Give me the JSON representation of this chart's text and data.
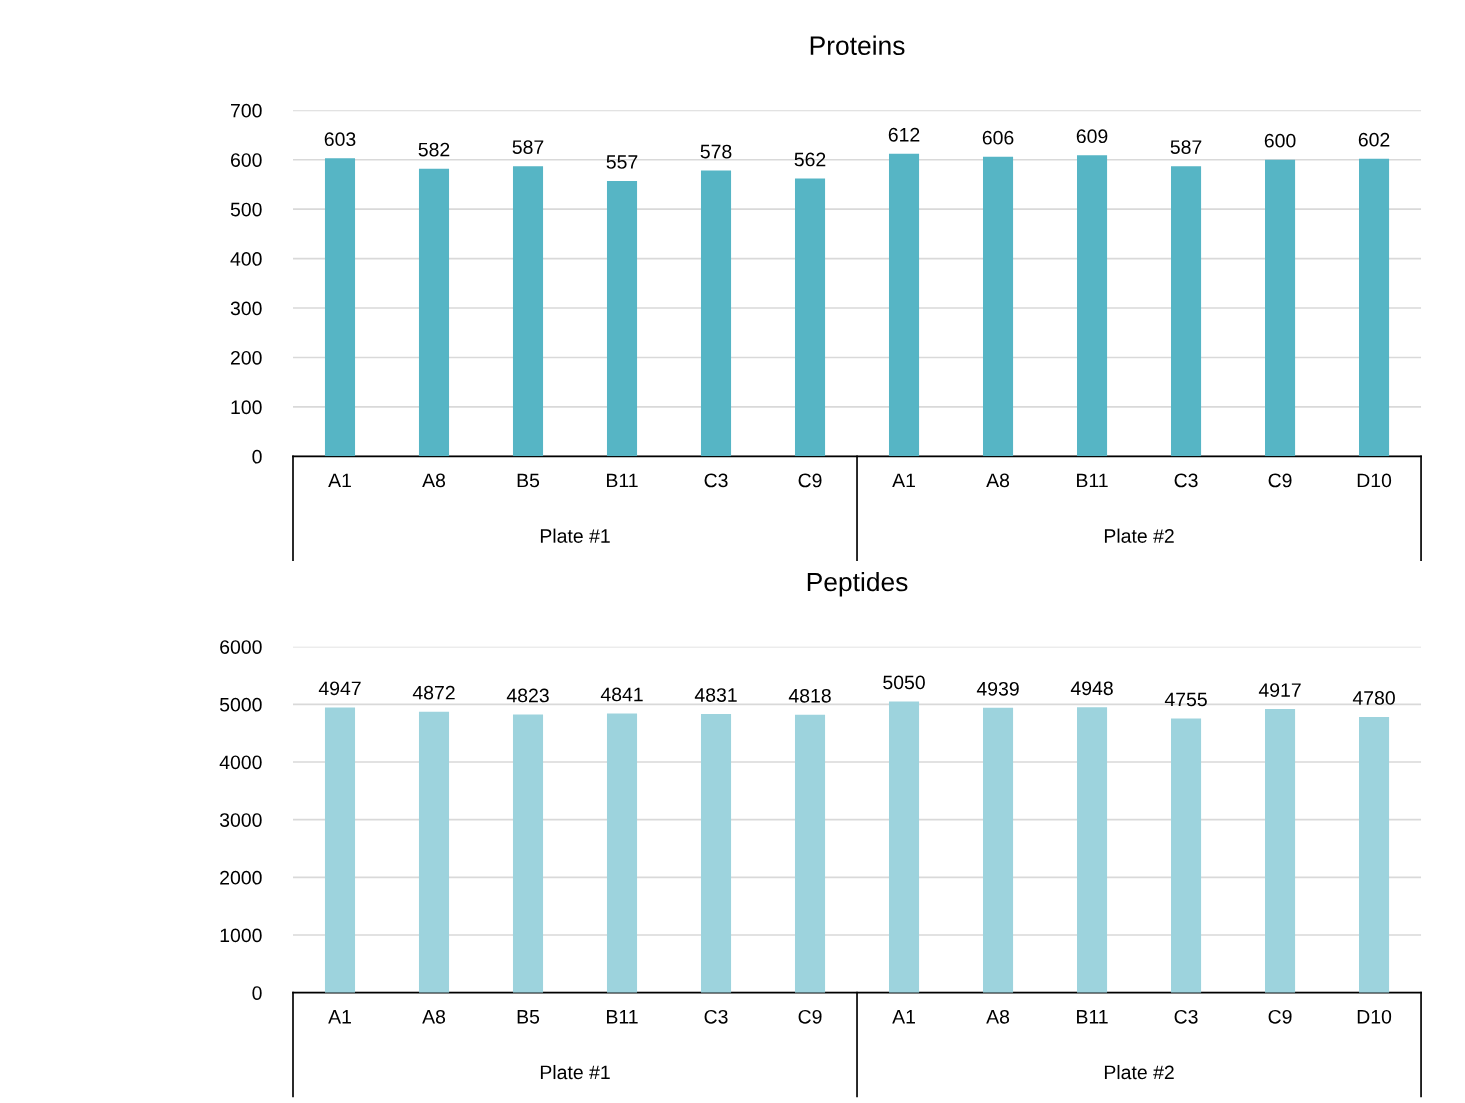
{
  "chart_data": [
    {
      "type": "bar",
      "title": "Proteins",
      "categories": [
        "A1",
        "A8",
        "B5",
        "B11",
        "C3",
        "C9",
        "A1",
        "A8",
        "B11",
        "C3",
        "C9",
        "D10"
      ],
      "values": [
        603,
        582,
        587,
        557,
        578,
        562,
        612,
        606,
        609,
        587,
        600,
        602
      ],
      "color": "#56b5c5",
      "ylim": [
        0,
        700
      ],
      "yticks": [
        0,
        100,
        200,
        300,
        400,
        500,
        600,
        700
      ],
      "grid": "y",
      "data_labels": true,
      "legend": false,
      "annotations": [
        "Plate #1",
        "Plate #2"
      ]
    },
    {
      "type": "bar",
      "title": "Peptides",
      "categories": [
        "A1",
        "A8",
        "B5",
        "B11",
        "C3",
        "C9",
        "A1",
        "A8",
        "B11",
        "C3",
        "C9",
        "D10"
      ],
      "values": [
        4947,
        4872,
        4823,
        4841,
        4831,
        4818,
        5050,
        4939,
        4948,
        4755,
        4917,
        4780
      ],
      "color": "#9dd3dd",
      "ylim": [
        0,
        6000
      ],
      "yticks": [
        0,
        1000,
        2000,
        3000,
        4000,
        5000,
        6000
      ],
      "grid": "y",
      "data_labels": true,
      "legend": false,
      "annotations": [
        "Plate #1",
        "Plate #2"
      ]
    }
  ]
}
